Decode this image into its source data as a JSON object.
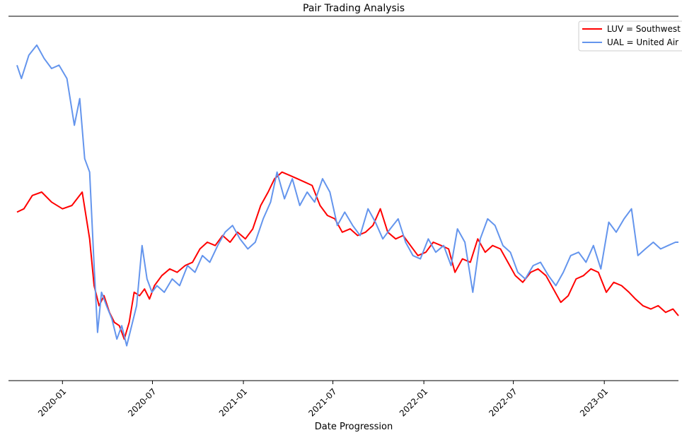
{
  "chart_data": {
    "type": "line",
    "title": "Pair Trading Analysis",
    "xlabel": "Date Progression",
    "ylabel": "",
    "x_ticks": [
      "2020-01",
      "2020-07",
      "2021-01",
      "2021-07",
      "2022-01",
      "2022-07",
      "2023-01"
    ],
    "x_range": [
      "2019-10-01",
      "2023-05-31"
    ],
    "ylim": [
      0,
      100
    ],
    "grid": false,
    "legend_position": "top-right",
    "series": [
      {
        "name": "LUV = Southwest",
        "color": "#ff0000",
        "x": [
          "2019-10-01",
          "2019-10-15",
          "2019-11-01",
          "2019-11-20",
          "2019-12-10",
          "2020-01-01",
          "2020-01-20",
          "2020-02-10",
          "2020-02-25",
          "2020-03-05",
          "2020-03-15",
          "2020-03-25",
          "2020-04-05",
          "2020-04-15",
          "2020-04-25",
          "2020-05-05",
          "2020-05-15",
          "2020-05-25",
          "2020-06-05",
          "2020-06-15",
          "2020-06-25",
          "2020-07-05",
          "2020-07-20",
          "2020-08-05",
          "2020-08-20",
          "2020-09-05",
          "2020-09-20",
          "2020-10-05",
          "2020-10-20",
          "2020-11-05",
          "2020-11-20",
          "2020-12-05",
          "2020-12-20",
          "2021-01-05",
          "2021-01-20",
          "2021-02-05",
          "2021-02-20",
          "2021-03-05",
          "2021-03-20",
          "2021-04-05",
          "2021-04-20",
          "2021-05-05",
          "2021-05-20",
          "2021-06-05",
          "2021-06-20",
          "2021-07-05",
          "2021-07-20",
          "2021-08-05",
          "2021-08-20",
          "2021-09-05",
          "2021-09-20",
          "2021-10-05",
          "2021-10-20",
          "2021-11-05",
          "2021-11-20",
          "2021-12-05",
          "2021-12-20",
          "2022-01-05",
          "2022-01-20",
          "2022-02-05",
          "2022-02-20",
          "2022-03-05",
          "2022-03-20",
          "2022-04-05",
          "2022-04-20",
          "2022-05-05",
          "2022-05-20",
          "2022-06-05",
          "2022-06-20",
          "2022-07-05",
          "2022-07-20",
          "2022-08-05",
          "2022-08-20",
          "2022-09-05",
          "2022-09-20",
          "2022-10-05",
          "2022-10-20",
          "2022-11-05",
          "2022-11-20",
          "2022-12-05",
          "2022-12-20",
          "2023-01-05",
          "2023-01-20",
          "2023-02-05",
          "2023-02-20",
          "2023-03-05",
          "2023-03-20",
          "2023-04-05",
          "2023-04-20",
          "2023-05-05",
          "2023-05-20",
          "2023-05-31"
        ],
        "values": [
          46,
          47,
          51,
          52,
          49,
          47,
          48,
          52,
          38,
          24,
          18,
          21,
          16,
          13,
          12,
          8,
          13,
          22,
          21,
          23,
          20,
          24,
          27,
          29,
          28,
          30,
          31,
          35,
          37,
          36,
          39,
          37,
          40,
          38,
          41,
          48,
          52,
          56,
          58,
          57,
          56,
          55,
          54,
          48,
          45,
          44,
          40,
          41,
          39,
          40,
          42,
          47,
          40,
          38,
          39,
          36,
          33,
          34,
          37,
          36,
          35,
          28,
          32,
          31,
          38,
          34,
          36,
          35,
          31,
          27,
          25,
          28,
          29,
          27,
          23,
          19,
          21,
          26,
          27,
          29,
          28,
          22,
          25,
          24,
          22,
          20,
          18,
          17,
          18,
          16,
          17,
          15
        ]
      },
      {
        "name": "UAL = United Air",
        "color": "#6495ed",
        "x": [
          "2019-10-01",
          "2019-10-10",
          "2019-10-25",
          "2019-11-10",
          "2019-11-25",
          "2019-12-10",
          "2019-12-25",
          "2020-01-10",
          "2020-01-25",
          "2020-02-05",
          "2020-02-15",
          "2020-02-25",
          "2020-03-05",
          "2020-03-12",
          "2020-03-20",
          "2020-03-30",
          "2020-04-10",
          "2020-04-20",
          "2020-04-30",
          "2020-05-10",
          "2020-05-20",
          "2020-05-30",
          "2020-06-10",
          "2020-06-20",
          "2020-06-30",
          "2020-07-10",
          "2020-07-25",
          "2020-08-10",
          "2020-08-25",
          "2020-09-10",
          "2020-09-25",
          "2020-10-10",
          "2020-10-25",
          "2020-11-10",
          "2020-11-25",
          "2020-12-10",
          "2020-12-25",
          "2021-01-10",
          "2021-01-25",
          "2021-02-10",
          "2021-02-25",
          "2021-03-10",
          "2021-03-25",
          "2021-04-10",
          "2021-04-25",
          "2021-05-10",
          "2021-05-25",
          "2021-06-10",
          "2021-06-25",
          "2021-07-10",
          "2021-07-25",
          "2021-08-10",
          "2021-08-25",
          "2021-09-10",
          "2021-09-25",
          "2021-10-10",
          "2021-10-25",
          "2021-11-10",
          "2021-11-25",
          "2021-12-10",
          "2021-12-25",
          "2022-01-10",
          "2022-01-25",
          "2022-02-10",
          "2022-02-25",
          "2022-03-10",
          "2022-03-25",
          "2022-04-10",
          "2022-04-25",
          "2022-05-10",
          "2022-05-25",
          "2022-06-10",
          "2022-06-25",
          "2022-07-10",
          "2022-07-25",
          "2022-08-10",
          "2022-08-25",
          "2022-09-10",
          "2022-09-25",
          "2022-10-10",
          "2022-10-25",
          "2022-11-10",
          "2022-11-25",
          "2022-12-10",
          "2022-12-25",
          "2023-01-10",
          "2023-01-25",
          "2023-02-10",
          "2023-02-25",
          "2023-03-10",
          "2023-03-25",
          "2023-04-10",
          "2023-04-25",
          "2023-05-10",
          "2023-05-25",
          "2023-05-31"
        ],
        "values": [
          90,
          86,
          93,
          96,
          92,
          89,
          90,
          86,
          72,
          80,
          62,
          58,
          30,
          10,
          22,
          18,
          14,
          8,
          12,
          6,
          12,
          18,
          36,
          26,
          22,
          24,
          22,
          26,
          24,
          30,
          28,
          33,
          31,
          36,
          40,
          42,
          38,
          35,
          37,
          44,
          49,
          58,
          50,
          56,
          48,
          52,
          49,
          56,
          52,
          42,
          46,
          42,
          39,
          47,
          43,
          38,
          41,
          44,
          37,
          33,
          32,
          38,
          34,
          36,
          30,
          41,
          37,
          22,
          38,
          44,
          42,
          36,
          34,
          28,
          26,
          30,
          31,
          27,
          24,
          28,
          33,
          34,
          31,
          36,
          29,
          43,
          40,
          44,
          47,
          33,
          35,
          37,
          35,
          36,
          37,
          37
        ]
      }
    ]
  }
}
